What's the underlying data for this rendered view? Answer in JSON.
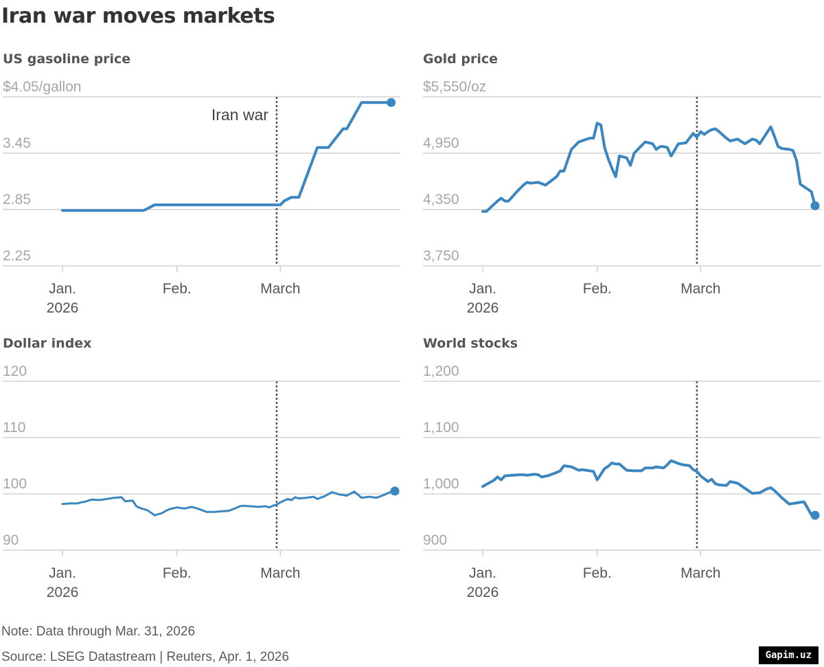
{
  "title": "Iran war moves markets",
  "note": "Note: Data through Mar. 31, 2026",
  "source": "Source: LSEG Datastream | Reuters, Apr. 1, 2026",
  "watermark": "Gapim.uz",
  "colors": {
    "line": "#3a86c0",
    "grid": "#c8c8c8",
    "event": "#555555"
  },
  "chart_data": [
    {
      "type": "line",
      "title": "US gasoline price",
      "ylim": [
        2.25,
        4.05
      ],
      "yticks": [
        4.05,
        3.45,
        2.85,
        2.25
      ],
      "ytick_labels": [
        "$4.05/gallon",
        "3.45",
        "2.85",
        "2.25"
      ],
      "xlim": [
        1,
        91
      ],
      "xticks": [
        1,
        32,
        60
      ],
      "xtick_labels": [
        [
          "Jan.",
          "2026"
        ],
        [
          "Feb."
        ],
        [
          "March"
        ]
      ],
      "event": {
        "x": 59,
        "label": "Iran war"
      },
      "end_marker": true,
      "x": [
        1,
        23,
        26,
        58,
        60,
        61,
        63,
        64,
        65,
        70,
        72,
        73,
        77,
        78,
        82,
        83,
        90
      ],
      "values": [
        2.84,
        2.84,
        2.9,
        2.9,
        2.9,
        2.94,
        2.98,
        2.98,
        2.98,
        3.51,
        3.51,
        3.51,
        3.71,
        3.71,
        3.99,
        3.99,
        3.99
      ]
    },
    {
      "type": "line",
      "title": "Gold price",
      "ylim": [
        3750,
        5550
      ],
      "yticks": [
        5550,
        4950,
        4350,
        3750
      ],
      "ytick_labels": [
        "$5,550/oz",
        "4,950",
        "4,350",
        "3,750"
      ],
      "xlim": [
        1,
        91
      ],
      "xticks": [
        1,
        32,
        60
      ],
      "xtick_labels": [
        [
          "Jan.",
          "2026"
        ],
        [
          "Feb."
        ],
        [
          "March"
        ]
      ],
      "event": {
        "x": 59,
        "label": ""
      },
      "end_marker": true,
      "x": [
        1,
        2,
        5,
        6,
        7,
        8,
        10,
        12,
        13,
        14,
        16,
        18,
        20,
        21,
        22,
        23,
        25,
        26,
        27,
        30,
        31,
        32,
        33,
        34,
        35,
        36,
        37,
        38,
        40,
        41,
        42,
        43,
        44,
        45,
        47,
        48,
        49,
        50,
        51,
        52,
        54,
        56,
        57,
        58,
        59,
        60,
        61,
        62,
        63,
        64,
        65,
        67,
        68,
        70,
        72,
        74,
        75,
        76,
        79,
        80,
        81,
        82,
        84,
        85,
        86,
        87,
        90,
        91
      ],
      "values": [
        4330,
        4330,
        4440,
        4470,
        4440,
        4440,
        4530,
        4610,
        4640,
        4630,
        4640,
        4610,
        4670,
        4700,
        4760,
        4760,
        4990,
        5030,
        5070,
        5110,
        5110,
        5270,
        5250,
        5010,
        4890,
        4790,
        4700,
        4920,
        4900,
        4820,
        4950,
        4990,
        5030,
        5070,
        5050,
        4990,
        5020,
        5020,
        5010,
        4920,
        5050,
        5060,
        5110,
        5160,
        5120,
        5180,
        5150,
        5180,
        5200,
        5210,
        5180,
        5110,
        5080,
        5100,
        5050,
        5100,
        5090,
        5050,
        5230,
        5130,
        5020,
        5000,
        4990,
        4980,
        4870,
        4620,
        4540,
        4390
      ]
    },
    {
      "type": "line",
      "title": "Dollar index",
      "ylim": [
        90,
        120
      ],
      "yticks": [
        120,
        110,
        100,
        90
      ],
      "ytick_labels": [
        "120",
        "110",
        "100",
        "90"
      ],
      "xlim": [
        1,
        91
      ],
      "xticks": [
        1,
        32,
        60
      ],
      "xtick_labels": [
        [
          "Jan.",
          "2026"
        ],
        [
          "Feb."
        ],
        [
          "March"
        ]
      ],
      "event": {
        "x": 59,
        "label": ""
      },
      "end_marker": true,
      "x": [
        1,
        3,
        5,
        6,
        7,
        9,
        11,
        13,
        15,
        17,
        18,
        20,
        21,
        22,
        24,
        26,
        27,
        28,
        29,
        30,
        32,
        34,
        36,
        38,
        40,
        42,
        44,
        46,
        48,
        49,
        50,
        52,
        54,
        56,
        57,
        58,
        59,
        60,
        62,
        63,
        64,
        65,
        67,
        69,
        70,
        72,
        74,
        75,
        76,
        78,
        80,
        82,
        84,
        86,
        88,
        90,
        91
      ],
      "values": [
        98.2,
        98.3,
        98.3,
        98.5,
        98.6,
        99.0,
        98.9,
        99.1,
        99.3,
        99.4,
        98.7,
        98.8,
        97.8,
        97.5,
        97.1,
        96.2,
        96.4,
        96.6,
        97.0,
        97.3,
        97.6,
        97.4,
        97.7,
        97.3,
        96.8,
        96.8,
        96.9,
        97.0,
        97.5,
        97.8,
        97.9,
        97.8,
        97.7,
        97.8,
        97.6,
        97.9,
        98.1,
        98.5,
        99.1,
        98.9,
        99.4,
        99.2,
        99.3,
        99.5,
        99.1,
        99.6,
        100.3,
        100.1,
        99.9,
        99.7,
        100.4,
        99.3,
        99.5,
        99.3,
        99.8,
        100.4,
        100.5
      ]
    },
    {
      "type": "line",
      "title": "World stocks",
      "ylim": [
        900,
        1200
      ],
      "yticks": [
        1200,
        1100,
        1000,
        900
      ],
      "ytick_labels": [
        "1,200",
        "1,100",
        "1,000",
        "900"
      ],
      "xlim": [
        1,
        91
      ],
      "xticks": [
        1,
        32,
        60
      ],
      "xtick_labels": [
        [
          "Jan.",
          "2026"
        ],
        [
          "Feb."
        ],
        [
          "March"
        ]
      ],
      "event": {
        "x": 59,
        "label": ""
      },
      "end_marker": true,
      "x": [
        1,
        2,
        4,
        5,
        6,
        7,
        9,
        11,
        12,
        13,
        15,
        16,
        17,
        19,
        21,
        22,
        23,
        25,
        27,
        28,
        29,
        31,
        32,
        34,
        35,
        36,
        37,
        38,
        40,
        42,
        43,
        44,
        45,
        47,
        48,
        50,
        51,
        52,
        54,
        55,
        57,
        58,
        59,
        60,
        62,
        63,
        64,
        65,
        67,
        68,
        70,
        72,
        74,
        76,
        78,
        79,
        80,
        82,
        84,
        86,
        88,
        90,
        91
      ],
      "values": [
        1013,
        1017,
        1024,
        1030,
        1025,
        1032,
        1033,
        1034,
        1034,
        1033,
        1035,
        1034,
        1030,
        1033,
        1038,
        1041,
        1050,
        1048,
        1042,
        1043,
        1042,
        1040,
        1025,
        1045,
        1049,
        1055,
        1053,
        1053,
        1042,
        1041,
        1041,
        1041,
        1046,
        1046,
        1048,
        1046,
        1052,
        1059,
        1054,
        1052,
        1050,
        1043,
        1040,
        1032,
        1022,
        1026,
        1018,
        1016,
        1015,
        1022,
        1019,
        1010,
        1001,
        1002,
        1009,
        1011,
        1006,
        993,
        982,
        984,
        986,
        963,
        962
      ]
    }
  ]
}
